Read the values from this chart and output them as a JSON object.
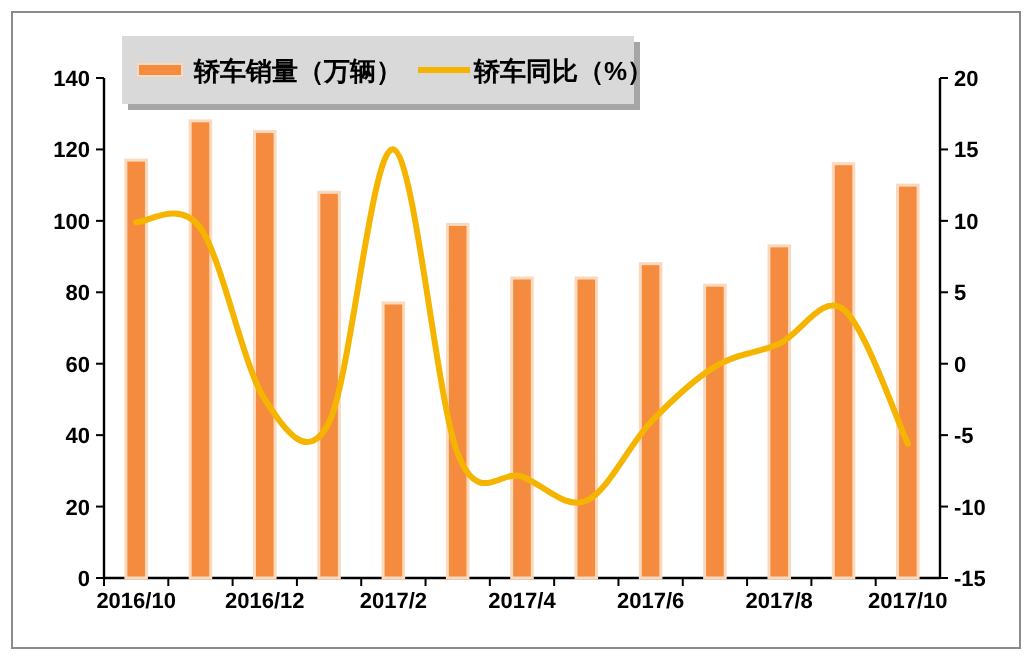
{
  "chart_data": {
    "type": "bar",
    "categories": [
      "2016/10",
      null,
      "2016/12",
      null,
      "2017/2",
      null,
      "2017/4",
      null,
      "2017/6",
      null,
      "2017/8",
      null,
      "2017/10"
    ],
    "series": [
      {
        "name": "轿车销量（万辆）",
        "color": "#f58b3f",
        "values": [
          117,
          128,
          125,
          108,
          77,
          99,
          84,
          84,
          88,
          82,
          93,
          116,
          110
        ]
      },
      {
        "name": "轿车同比（%）",
        "type": "line",
        "axis": "y2",
        "color": "#f5b400",
        "values": [
          9.9,
          9.5,
          -2.5,
          -4.1,
          15,
          -6.3,
          -7.9,
          -9.6,
          -4.1,
          -0.2,
          1.4,
          3.8,
          -5.6
        ]
      }
    ],
    "ylim": [
      0,
      140
    ],
    "yticks": [
      0,
      20,
      40,
      60,
      80,
      100,
      120,
      140
    ],
    "y2lim": [
      -15,
      20
    ],
    "y2ticks": [
      -15,
      -10,
      -5,
      0,
      5,
      10,
      15,
      20
    ],
    "legend": "top left",
    "grid": false
  }
}
